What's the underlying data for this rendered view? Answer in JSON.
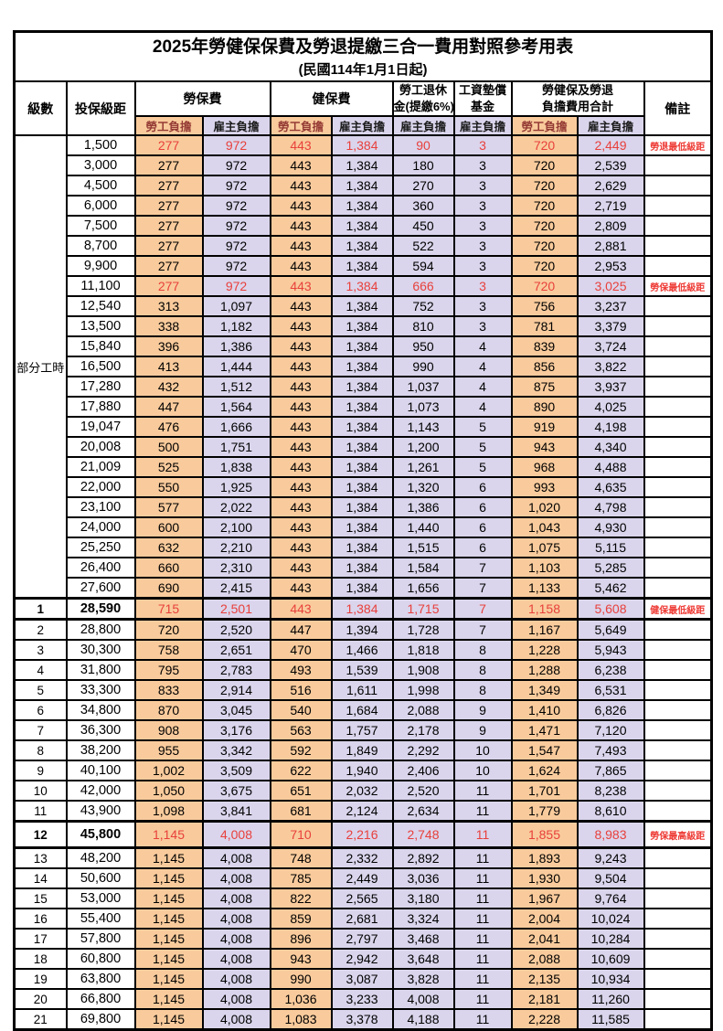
{
  "title": "2025年勞健保保費及勞退提繳三合一費用對照參考用表",
  "subtitle": "(民國114年1月1日起)",
  "header": {
    "level": "級數",
    "bracket": "投保級距",
    "labor": "勞保費",
    "health": "健保費",
    "pension": {
      "line1": "勞工退休",
      "line2": "金(提繳6%)"
    },
    "wage_fund": {
      "line1": "工資墊償",
      "line2": "基金"
    },
    "total": {
      "line1": "勞健保及勞退",
      "line2": "負擔費用合計"
    },
    "note": "備註",
    "employee": "勞工負擔",
    "employer": "雇主負擔"
  },
  "part_time": {
    "label": "部分工時",
    "rowspan": 23
  },
  "colors": {
    "employee_bg": "#F9CB9C",
    "employer_bg": "#DAD5EC",
    "highlight_text": "#E8403C",
    "border": "#000000"
  },
  "notes_legend": [
    "勞退最低級距",
    "勞保最低級距",
    "健保最低級距",
    "勞保最高級距"
  ],
  "rows": [
    {
      "b": "1,500",
      "v": [
        "277",
        "972",
        "443",
        "1,384",
        "90",
        "3",
        "720",
        "2,449"
      ],
      "n": "勞退最低級距",
      "red": true
    },
    {
      "b": "3,000",
      "v": [
        "277",
        "972",
        "443",
        "1,384",
        "180",
        "3",
        "720",
        "2,539"
      ]
    },
    {
      "b": "4,500",
      "v": [
        "277",
        "972",
        "443",
        "1,384",
        "270",
        "3",
        "720",
        "2,629"
      ]
    },
    {
      "b": "6,000",
      "v": [
        "277",
        "972",
        "443",
        "1,384",
        "360",
        "3",
        "720",
        "2,719"
      ]
    },
    {
      "b": "7,500",
      "v": [
        "277",
        "972",
        "443",
        "1,384",
        "450",
        "3",
        "720",
        "2,809"
      ]
    },
    {
      "b": "8,700",
      "v": [
        "277",
        "972",
        "443",
        "1,384",
        "522",
        "3",
        "720",
        "2,881"
      ]
    },
    {
      "b": "9,900",
      "v": [
        "277",
        "972",
        "443",
        "1,384",
        "594",
        "3",
        "720",
        "2,953"
      ]
    },
    {
      "b": "11,100",
      "v": [
        "277",
        "972",
        "443",
        "1,384",
        "666",
        "3",
        "720",
        "3,025"
      ],
      "n": "勞保最低級距",
      "red": true
    },
    {
      "b": "12,540",
      "v": [
        "313",
        "1,097",
        "443",
        "1,384",
        "752",
        "3",
        "756",
        "3,237"
      ]
    },
    {
      "b": "13,500",
      "v": [
        "338",
        "1,182",
        "443",
        "1,384",
        "810",
        "3",
        "781",
        "3,379"
      ]
    },
    {
      "b": "15,840",
      "v": [
        "396",
        "1,386",
        "443",
        "1,384",
        "950",
        "4",
        "839",
        "3,724"
      ]
    },
    {
      "b": "16,500",
      "v": [
        "413",
        "1,444",
        "443",
        "1,384",
        "990",
        "4",
        "856",
        "3,822"
      ]
    },
    {
      "b": "17,280",
      "v": [
        "432",
        "1,512",
        "443",
        "1,384",
        "1,037",
        "4",
        "875",
        "3,937"
      ]
    },
    {
      "b": "17,880",
      "v": [
        "447",
        "1,564",
        "443",
        "1,384",
        "1,073",
        "4",
        "890",
        "4,025"
      ]
    },
    {
      "b": "19,047",
      "v": [
        "476",
        "1,666",
        "443",
        "1,384",
        "1,143",
        "5",
        "919",
        "4,198"
      ]
    },
    {
      "b": "20,008",
      "v": [
        "500",
        "1,751",
        "443",
        "1,384",
        "1,200",
        "5",
        "943",
        "4,340"
      ]
    },
    {
      "b": "21,009",
      "v": [
        "525",
        "1,838",
        "443",
        "1,384",
        "1,261",
        "5",
        "968",
        "4,488"
      ]
    },
    {
      "b": "22,000",
      "v": [
        "550",
        "1,925",
        "443",
        "1,384",
        "1,320",
        "6",
        "993",
        "4,635"
      ]
    },
    {
      "b": "23,100",
      "v": [
        "577",
        "2,022",
        "443",
        "1,384",
        "1,386",
        "6",
        "1,020",
        "4,798"
      ]
    },
    {
      "b": "24,000",
      "v": [
        "600",
        "2,100",
        "443",
        "1,384",
        "1,440",
        "6",
        "1,043",
        "4,930"
      ]
    },
    {
      "b": "25,250",
      "v": [
        "632",
        "2,210",
        "443",
        "1,384",
        "1,515",
        "6",
        "1,075",
        "5,115"
      ]
    },
    {
      "b": "26,400",
      "v": [
        "660",
        "2,310",
        "443",
        "1,384",
        "1,584",
        "7",
        "1,103",
        "5,285"
      ]
    },
    {
      "b": "27,600",
      "v": [
        "690",
        "2,415",
        "443",
        "1,384",
        "1,656",
        "7",
        "1,133",
        "5,462"
      ]
    },
    {
      "lv": "1",
      "b": "28,590",
      "v": [
        "715",
        "2,501",
        "443",
        "1,384",
        "1,715",
        "7",
        "1,158",
        "5,608"
      ],
      "n": "健保最低級距",
      "red": true,
      "bold": true,
      "thick": true
    },
    {
      "lv": "2",
      "b": "28,800",
      "v": [
        "720",
        "2,520",
        "447",
        "1,394",
        "1,728",
        "7",
        "1,167",
        "5,649"
      ]
    },
    {
      "lv": "3",
      "b": "30,300",
      "v": [
        "758",
        "2,651",
        "470",
        "1,466",
        "1,818",
        "8",
        "1,228",
        "5,943"
      ]
    },
    {
      "lv": "4",
      "b": "31,800",
      "v": [
        "795",
        "2,783",
        "493",
        "1,539",
        "1,908",
        "8",
        "1,288",
        "6,238"
      ]
    },
    {
      "lv": "5",
      "b": "33,300",
      "v": [
        "833",
        "2,914",
        "516",
        "1,611",
        "1,998",
        "8",
        "1,349",
        "6,531"
      ]
    },
    {
      "lv": "6",
      "b": "34,800",
      "v": [
        "870",
        "3,045",
        "540",
        "1,684",
        "2,088",
        "9",
        "1,410",
        "6,826"
      ]
    },
    {
      "lv": "7",
      "b": "36,300",
      "v": [
        "908",
        "3,176",
        "563",
        "1,757",
        "2,178",
        "9",
        "1,471",
        "7,120"
      ]
    },
    {
      "lv": "8",
      "b": "38,200",
      "v": [
        "955",
        "3,342",
        "592",
        "1,849",
        "2,292",
        "10",
        "1,547",
        "7,493"
      ]
    },
    {
      "lv": "9",
      "b": "40,100",
      "v": [
        "1,002",
        "3,509",
        "622",
        "1,940",
        "2,406",
        "10",
        "1,624",
        "7,865"
      ]
    },
    {
      "lv": "10",
      "b": "42,000",
      "v": [
        "1,050",
        "3,675",
        "651",
        "2,032",
        "2,520",
        "11",
        "1,701",
        "8,238"
      ]
    },
    {
      "lv": "11",
      "b": "43,900",
      "v": [
        "1,098",
        "3,841",
        "681",
        "2,124",
        "2,634",
        "11",
        "1,779",
        "8,610"
      ]
    },
    {
      "lv": "12",
      "b": "45,800",
      "v": [
        "1,145",
        "4,008",
        "710",
        "2,216",
        "2,748",
        "11",
        "1,855",
        "8,983"
      ],
      "n": "勞保最高級距",
      "red": true,
      "bold": true,
      "thick": true,
      "tall": true
    },
    {
      "lv": "13",
      "b": "48,200",
      "v": [
        "1,145",
        "4,008",
        "748",
        "2,332",
        "2,892",
        "11",
        "1,893",
        "9,243"
      ]
    },
    {
      "lv": "14",
      "b": "50,600",
      "v": [
        "1,145",
        "4,008",
        "785",
        "2,449",
        "3,036",
        "11",
        "1,930",
        "9,504"
      ]
    },
    {
      "lv": "15",
      "b": "53,000",
      "v": [
        "1,145",
        "4,008",
        "822",
        "2,565",
        "3,180",
        "11",
        "1,967",
        "9,764"
      ]
    },
    {
      "lv": "16",
      "b": "55,400",
      "v": [
        "1,145",
        "4,008",
        "859",
        "2,681",
        "3,324",
        "11",
        "2,004",
        "10,024"
      ]
    },
    {
      "lv": "17",
      "b": "57,800",
      "v": [
        "1,145",
        "4,008",
        "896",
        "2,797",
        "3,468",
        "11",
        "2,041",
        "10,284"
      ]
    },
    {
      "lv": "18",
      "b": "60,800",
      "v": [
        "1,145",
        "4,008",
        "943",
        "2,942",
        "3,648",
        "11",
        "2,088",
        "10,609"
      ]
    },
    {
      "lv": "19",
      "b": "63,800",
      "v": [
        "1,145",
        "4,008",
        "990",
        "3,087",
        "3,828",
        "11",
        "2,135",
        "10,934"
      ]
    },
    {
      "lv": "20",
      "b": "66,800",
      "v": [
        "1,145",
        "4,008",
        "1,036",
        "3,233",
        "4,008",
        "11",
        "2,181",
        "11,260"
      ]
    },
    {
      "lv": "21",
      "b": "69,800",
      "v": [
        "1,145",
        "4,008",
        "1,083",
        "3,378",
        "4,188",
        "11",
        "2,228",
        "11,585"
      ]
    }
  ]
}
